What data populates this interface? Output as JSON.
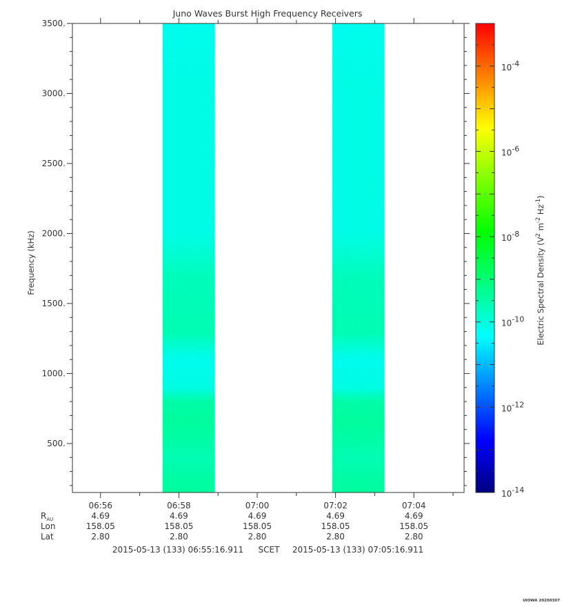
{
  "chart_data": {
    "type": "heatmap",
    "title": "Juno Waves Burst High Frequency Receivers",
    "ylabel": "Frequency (kHz)",
    "ylim": [
      150,
      3500
    ],
    "y_ticks": [
      500,
      1000,
      1500,
      2000,
      2500,
      3000,
      3500
    ],
    "y_tick_labels": [
      "500.",
      "1000.",
      "1500.",
      "2000.",
      "2500.",
      "3000.",
      "3500."
    ],
    "x_tick_labels": [
      "06:56",
      "06:58",
      "07:00",
      "07:02",
      "07:04"
    ],
    "time_range": [
      "2015-05-13 (133) 06:55:16.911",
      "2015-05-13 (133) 07:05:16.911"
    ],
    "bursts": [
      {
        "start": "06:57:35",
        "end": "06:58:55"
      },
      {
        "start": "07:01:55",
        "end": "07:03:15"
      }
    ],
    "spectral_profile": [
      {
        "freq_khz": 150,
        "log_density": -9.4
      },
      {
        "freq_khz": 400,
        "log_density": -9.6
      },
      {
        "freq_khz": 650,
        "log_density": -9.4
      },
      {
        "freq_khz": 800,
        "log_density": -9.5
      },
      {
        "freq_khz": 900,
        "log_density": -10.1
      },
      {
        "freq_khz": 1100,
        "log_density": -10.2
      },
      {
        "freq_khz": 1300,
        "log_density": -9.6
      },
      {
        "freq_khz": 1700,
        "log_density": -9.7
      },
      {
        "freq_khz": 2000,
        "log_density": -10.1
      },
      {
        "freq_khz": 2500,
        "log_density": -10.1
      },
      {
        "freq_khz": 3000,
        "log_density": -10.1
      },
      {
        "freq_khz": 3500,
        "log_density": -10.2
      }
    ],
    "colorbar": {
      "label_prefix": "Electric Spectral Density (V",
      "label_sup1": "2",
      "label_mid": " m",
      "label_sup2": "-2",
      "label_mid2": " Hz",
      "label_sup3": "-1",
      "label_suffix": ")",
      "range_log": [
        -14,
        -3
      ],
      "tick_labels": [
        {
          "base": "10",
          "exp": "-14"
        },
        {
          "base": "10",
          "exp": "-12"
        },
        {
          "base": "10",
          "exp": "-10"
        },
        {
          "base": "10",
          "exp": "-8"
        },
        {
          "base": "10",
          "exp": "-6"
        },
        {
          "base": "10",
          "exp": "-4"
        }
      ]
    },
    "ephemeris": {
      "rows": [
        {
          "label": "R",
          "sub": "AU",
          "values": [
            "4.69",
            "4.69",
            "4.69",
            "4.69",
            "4.69"
          ]
        },
        {
          "label": "Lon",
          "sub": "",
          "values": [
            "158.05",
            "158.05",
            "158.05",
            "158.05",
            "158.05"
          ]
        },
        {
          "label": "Lat",
          "sub": "",
          "values": [
            "2.80",
            "2.80",
            "2.80",
            "2.80",
            "2.80"
          ]
        }
      ]
    },
    "scet_label": "SCET"
  },
  "footer_stamp": "UIOWA 20200307",
  "colors": {
    "colormap": [
      "#000080",
      "#0000ff",
      "#0080ff",
      "#00ffff",
      "#00ff80",
      "#00ff00",
      "#80ff00",
      "#ffff00",
      "#ff8000",
      "#ff0000"
    ]
  }
}
